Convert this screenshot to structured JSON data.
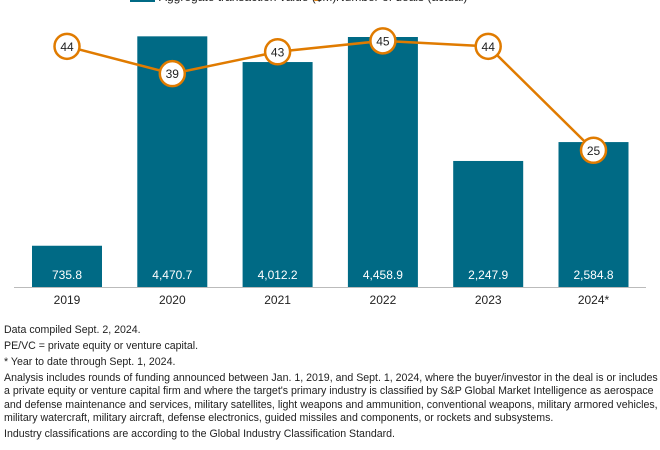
{
  "chart_data": {
    "type": "bar+line",
    "categories": [
      "2019",
      "2020",
      "2021",
      "2022",
      "2023",
      "2024*"
    ],
    "series": [
      {
        "name": "Aggregate transaction value ($M)",
        "type": "bar",
        "values": [
          735.8,
          4470.7,
          4012.2,
          4458.9,
          2247.9,
          2584.8
        ],
        "labels": [
          "735.8",
          "4,470.7",
          "4,012.2",
          "4,458.9",
          "2,247.9",
          "2,584.8"
        ],
        "color": "#006a85"
      },
      {
        "name": "Number of deals (actual)",
        "type": "line",
        "values": [
          44,
          39,
          43,
          45,
          44,
          25
        ],
        "color": "#e07b00"
      }
    ],
    "legend": "top",
    "grid": false
  },
  "notes": [
    "Data compiled Sept. 2, 2024.",
    "PE/VC = private equity or venture capital.",
    "* Year to date through Sept. 1, 2024.",
    "Analysis includes rounds of funding announced between Jan. 1, 2019, and Sept. 1, 2024, where the buyer/investor in the deal is or includes a private equity or venture capital firm and where the target's primary industry is classified by S&P Global Market Intelligence as aerospace and defense maintenance and services, military satellites, light weapons and ammunition, conventional weapons, military armored vehicles, military watercraft, military aircraft, defense electronics, guided missiles and components, or rockets and subsystems.",
    "Industry classifications are according to the Global Industry Classification Standard."
  ]
}
